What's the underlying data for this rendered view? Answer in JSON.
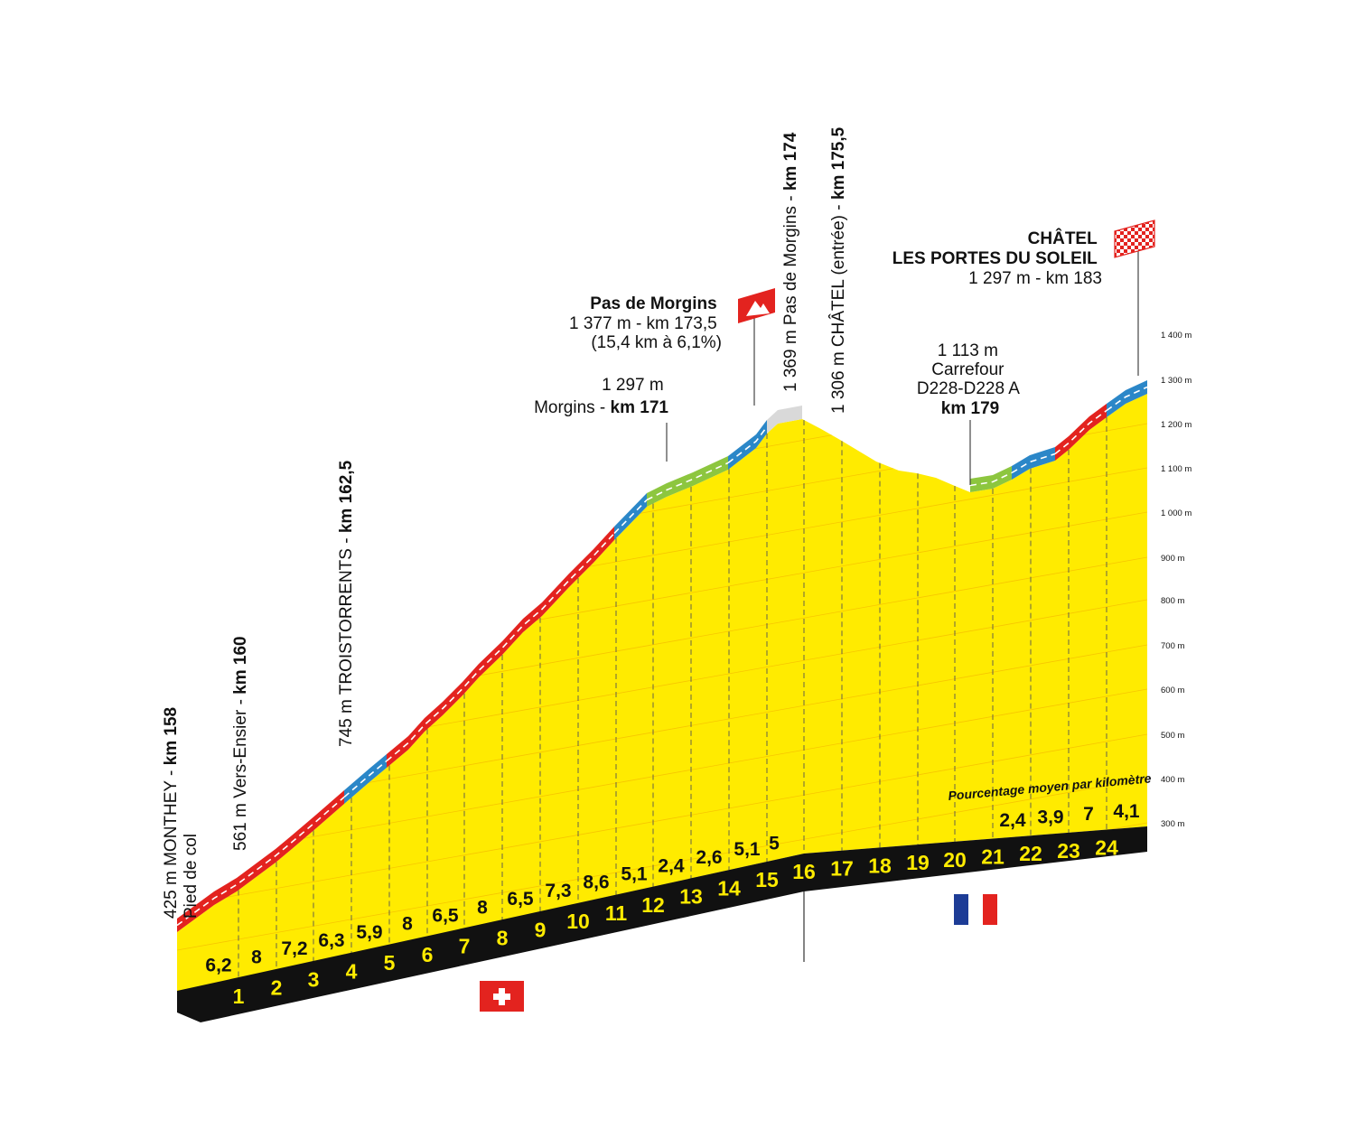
{
  "profile": {
    "km_markers": [
      "1",
      "2",
      "3",
      "4",
      "5",
      "6",
      "7",
      "8",
      "9",
      "10",
      "11",
      "12",
      "13",
      "14",
      "15",
      "16",
      "17",
      "18",
      "19",
      "20",
      "21",
      "22",
      "23",
      "24"
    ],
    "gradients_lower": [
      "6,2",
      "8",
      "7,2",
      "6,3",
      "5,9",
      "8",
      "6,5",
      "8",
      "6,5",
      "7,3",
      "8,6",
      "5,1",
      "2,4",
      "2,6",
      "5,1",
      "5"
    ],
    "gradients_upper": [
      "2,4",
      "3,9",
      "7",
      "4,1"
    ],
    "gradients_caption": "Pourcentage moyen par kilomètre",
    "altitude_axis": [
      "300 m",
      "400 m",
      "500 m",
      "600 m",
      "700 m",
      "800 m",
      "900 m",
      "1 000 m",
      "1 100 m",
      "1 200 m",
      "1 300 m",
      "1 400 m"
    ],
    "colors": {
      "yellow": "#FFEB00",
      "red": "#E3231F",
      "blue": "#2B87C8",
      "green": "#8DC63F",
      "black": "#111111",
      "side": "#F5C200"
    }
  },
  "labels": {
    "monthey": {
      "line1_pre": "425 m MONTHEY - ",
      "line1_bold": "km 158",
      "line2": "Pied de col"
    },
    "vers_ensier": {
      "pre": "561 m Vers-Ensier - ",
      "bold": "km 160"
    },
    "troistorrents": {
      "pre": "745 m TROISTORRENTS - ",
      "bold": "km 162,5"
    },
    "morgins": {
      "line1": "1 297 m",
      "line2_pre": "Morgins - ",
      "line2_bold": "km 171"
    },
    "pas_de_morgins": {
      "title": "Pas de Morgins",
      "line2": "1 377 m - km 173,5",
      "line3": "(15,4 km à 6,1%)"
    },
    "pas_de_morgins_v": {
      "pre": "1 369 m Pas de Morgins - ",
      "bold": "km 174"
    },
    "chatel_entree": {
      "pre": "1 306 m CHÂTEL (entrée) - ",
      "bold": "km 175,5"
    },
    "carrefour": {
      "line1": "1 113 m",
      "line2": "Carrefour",
      "line3": "D228-D228 A",
      "line4": "km 179"
    },
    "finish": {
      "line1": "CHÂTEL",
      "line2": "LES PORTES DU SOLEIL",
      "line3": "1 297 m - km 183"
    }
  }
}
